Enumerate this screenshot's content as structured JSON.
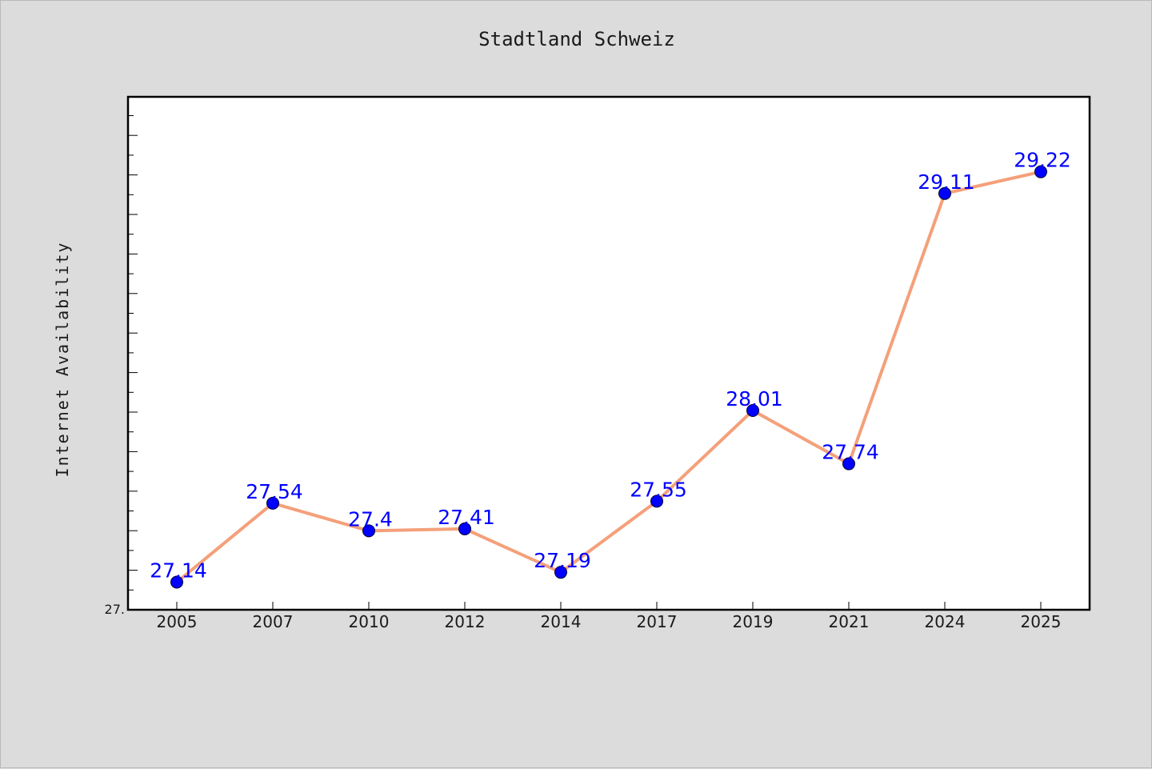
{
  "chart_data": {
    "type": "line",
    "title": "Stadtland Schweiz",
    "xlabel": "",
    "ylabel": "Internet Availability",
    "categories": [
      "2005",
      "2007",
      "2010",
      "2012",
      "2014",
      "2017",
      "2019",
      "2021",
      "2024",
      "2025"
    ],
    "series": [
      {
        "values": [
          27.14,
          27.54,
          27.4,
          27.41,
          27.19,
          27.55,
          28.01,
          27.74,
          29.11,
          29.22
        ]
      }
    ],
    "data_labels": [
      "27.14",
      "27.54",
      "27.4",
      "27.41",
      "27.19",
      "27.55",
      "28.01",
      "27.74",
      "29.11",
      "29.22"
    ],
    "y_tick_label": "27.",
    "ylim": [
      27.0,
      29.6
    ],
    "grid": false,
    "legend": "none",
    "colors": {
      "line": "#f4a07a",
      "marker": "#0000ff",
      "label": "#0000ff",
      "background": "#dcdcdc",
      "plot_background": "#ffffff"
    }
  }
}
